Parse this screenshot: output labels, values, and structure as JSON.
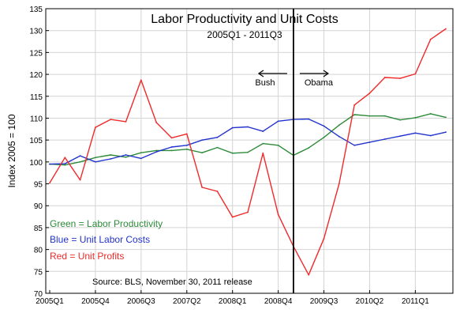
{
  "chart_data": {
    "type": "line",
    "title": "Labor Productivity and Unit Costs",
    "subtitle": "2005Q1 - 2011Q3",
    "ylabel": "Index 2005 = 100",
    "xlabel": "",
    "ylim": [
      70,
      135
    ],
    "yticks": [
      70,
      75,
      80,
      85,
      90,
      95,
      100,
      105,
      110,
      115,
      120,
      125,
      130,
      135
    ],
    "grid": true,
    "x": [
      "2005Q1",
      "2005Q2",
      "2005Q3",
      "2005Q4",
      "2006Q1",
      "2006Q2",
      "2006Q3",
      "2006Q4",
      "2007Q1",
      "2007Q2",
      "2007Q3",
      "2007Q4",
      "2008Q1",
      "2008Q2",
      "2008Q3",
      "2008Q4",
      "2009Q1",
      "2009Q2",
      "2009Q3",
      "2009Q4",
      "2010Q1",
      "2010Q2",
      "2010Q3",
      "2010Q4",
      "2011Q1",
      "2011Q2",
      "2011Q3"
    ],
    "xtick_labels": [
      "2005Q1",
      "2005Q4",
      "2006Q3",
      "2007Q2",
      "2008Q1",
      "2008Q4",
      "2009Q3",
      "2010Q2",
      "2011Q1"
    ],
    "series": [
      {
        "key": "green",
        "color": "#2e8b3a",
        "values": [
          99.5,
          99.3,
          100.0,
          101.0,
          101.6,
          101.1,
          102.1,
          102.6,
          102.6,
          102.9,
          102.1,
          103.3,
          102.0,
          102.2,
          104.2,
          103.8,
          101.5,
          103.2,
          105.6,
          108.4,
          110.8,
          110.5,
          110.5,
          109.6,
          110.1,
          111.0,
          110.2
        ]
      },
      {
        "key": "blue",
        "color": "#2233cc",
        "values": [
          99.5,
          99.6,
          101.4,
          100.0,
          100.7,
          101.6,
          100.8,
          102.3,
          103.4,
          103.8,
          105.0,
          105.6,
          107.8,
          108.0,
          107.0,
          109.3,
          109.7,
          109.8,
          108.2,
          105.8,
          103.8,
          104.5,
          105.2,
          105.9,
          106.6,
          106.0,
          106.8
        ]
      },
      {
        "key": "red",
        "color": "#ee2a2a",
        "values": [
          95.2,
          101.0,
          95.9,
          107.9,
          109.7,
          109.2,
          118.7,
          109.0,
          105.5,
          106.4,
          94.2,
          93.3,
          87.4,
          88.5,
          102.0,
          88.0,
          80.7,
          74.2,
          82.5,
          95.0,
          113.0,
          115.7,
          119.3,
          119.1,
          120.1,
          128.0,
          130.4
        ]
      }
    ],
    "legend_text": [
      {
        "text": "Green = Labor Productivity",
        "color": "#2e8b3a"
      },
      {
        "text": "Blue = Unit Labor Costs",
        "color": "#2233cc"
      },
      {
        "text": "Red = Unit Profits",
        "color": "#ee2a2a"
      }
    ],
    "legend_placement": "lower-left",
    "source": "Source:  BLS, November 30, 2011 release",
    "divider": {
      "x": "2009Q1",
      "left_label": "Bush",
      "right_label": "Obama"
    }
  }
}
